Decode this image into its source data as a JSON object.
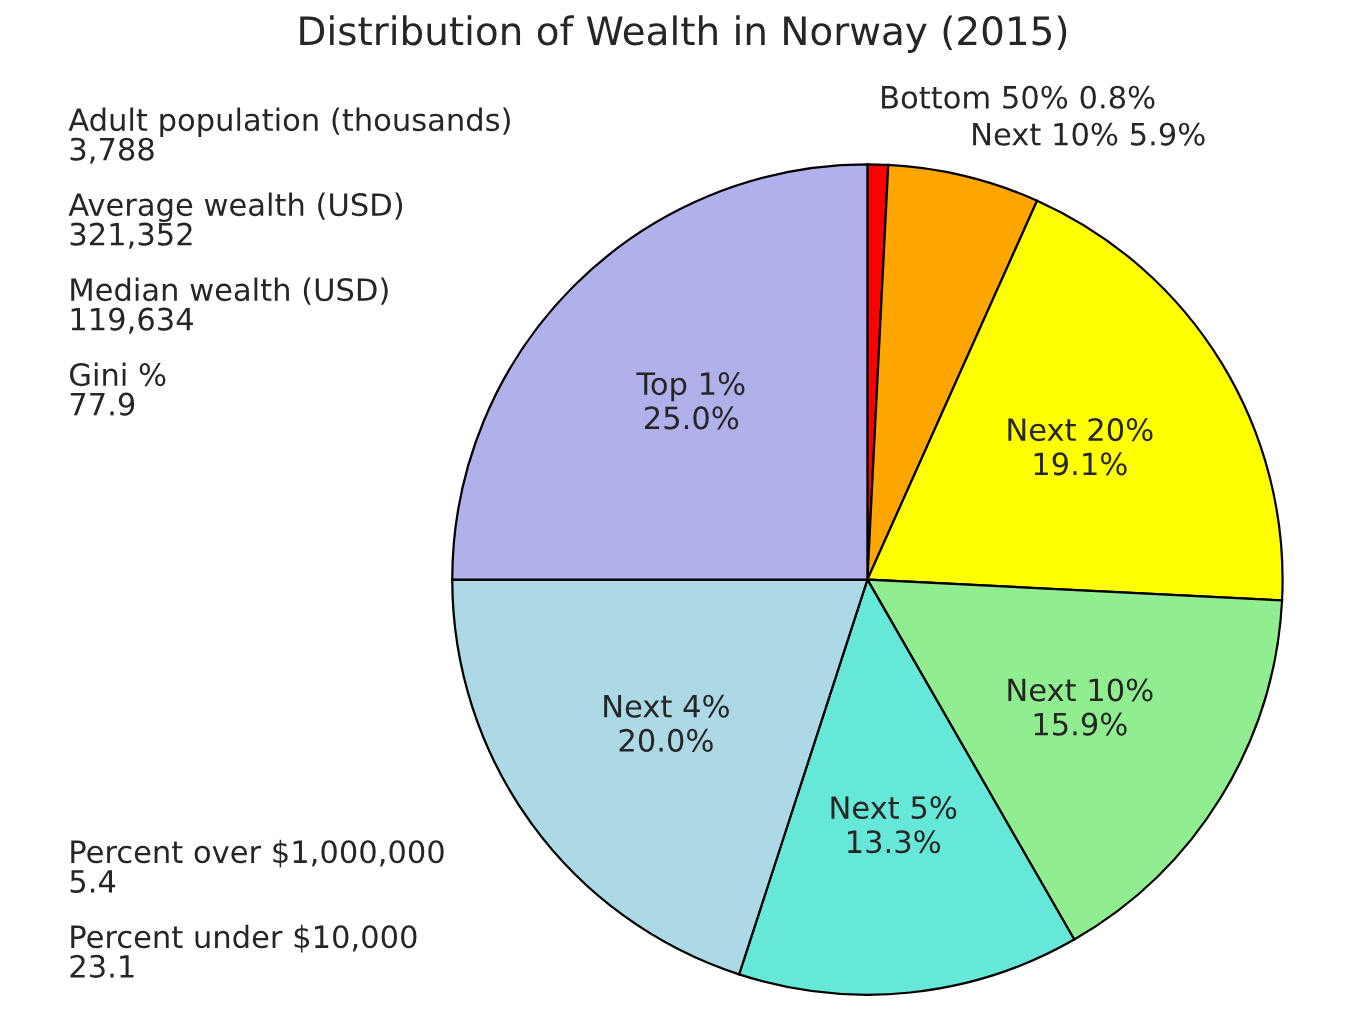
{
  "chart_data": {
    "type": "pie",
    "title": "Distribution of Wealth in Norway (2015)",
    "categories": [
      "Bottom 50%",
      "Next 10%",
      "Next 20%",
      "Next 10%",
      "Next 5%",
      "Next 4%",
      "Top 1%"
    ],
    "values": [
      0.8,
      5.9,
      19.1,
      15.9,
      13.3,
      20.0,
      25.0
    ],
    "value_labels": [
      "0.8%",
      "5.9%",
      "19.1%",
      "15.9%",
      "13.3%",
      "20.0%",
      "25.0%"
    ],
    "colors": [
      "#ff0000",
      "#ffa500",
      "#ffff00",
      "#90ee90",
      "#66e8d8",
      "#add8e6",
      "#b0b0ea"
    ],
    "annotations": [
      "Adult population (thousands)\n3,788",
      "Average wealth (USD)\n321,352",
      "Median wealth (USD)\n119,634",
      "Gini %\n77.9",
      "Percent over $1,000,000\n5.4",
      "Percent under $10,000\n23.1"
    ],
    "legend": false
  }
}
